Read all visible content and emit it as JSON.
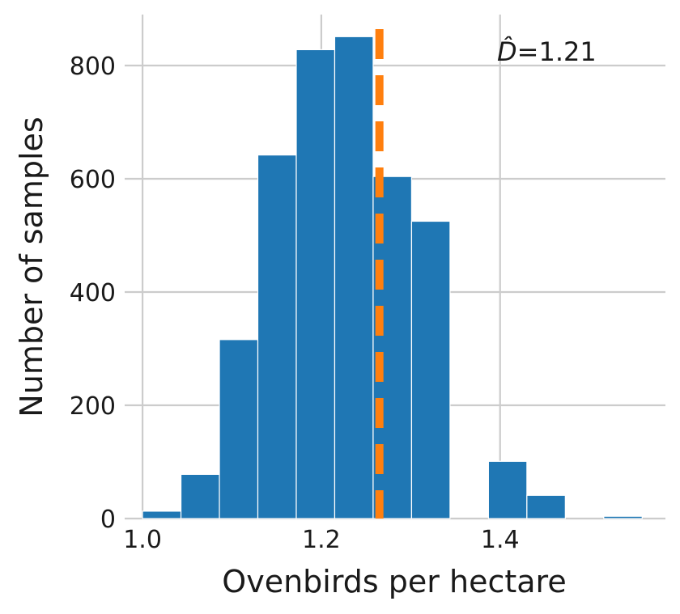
{
  "chart_data": {
    "type": "bar",
    "title": "",
    "xlabel": "Ovenbirds per hectare",
    "ylabel": "Number of samples",
    "xlim": [
      0.98,
      1.585
    ],
    "ylim": [
      0,
      890
    ],
    "xticks": [
      1.0,
      1.2,
      1.4
    ],
    "xtick_labels": [
      "1.0",
      "1.2",
      "1.4"
    ],
    "yticks": [
      0,
      200,
      400,
      600,
      800
    ],
    "ytick_labels": [
      "0",
      "200",
      "400",
      "600",
      "800"
    ],
    "grid": true,
    "legend": "none",
    "bar_color": "#1f77b4",
    "bins": [
      {
        "x0": 1.0,
        "x1": 1.043,
        "value": 13
      },
      {
        "x0": 1.043,
        "x1": 1.086,
        "value": 78
      },
      {
        "x0": 1.086,
        "x1": 1.129,
        "value": 316
      },
      {
        "x0": 1.129,
        "x1": 1.172,
        "value": 642
      },
      {
        "x0": 1.172,
        "x1": 1.215,
        "value": 828
      },
      {
        "x0": 1.215,
        "x1": 1.258,
        "value": 851
      },
      {
        "x0": 1.258,
        "x1": 1.301,
        "value": 604
      },
      {
        "x0": 1.301,
        "x1": 1.344,
        "value": 525
      },
      {
        "x0": 1.344,
        "x1": 1.387,
        "value": 0
      },
      {
        "x0": 1.387,
        "x1": 1.43,
        "value": 101
      },
      {
        "x0": 1.43,
        "x1": 1.473,
        "value": 41
      },
      {
        "x0": 1.473,
        "x1": 1.516,
        "value": 0
      },
      {
        "x0": 1.516,
        "x1": 1.559,
        "value": 4
      }
    ],
    "reference_line": {
      "x": 1.265,
      "style": "dashed",
      "color": "#ff7f0e"
    },
    "annotation": {
      "symbol": "D̂",
      "value_text": "=1.21"
    }
  }
}
